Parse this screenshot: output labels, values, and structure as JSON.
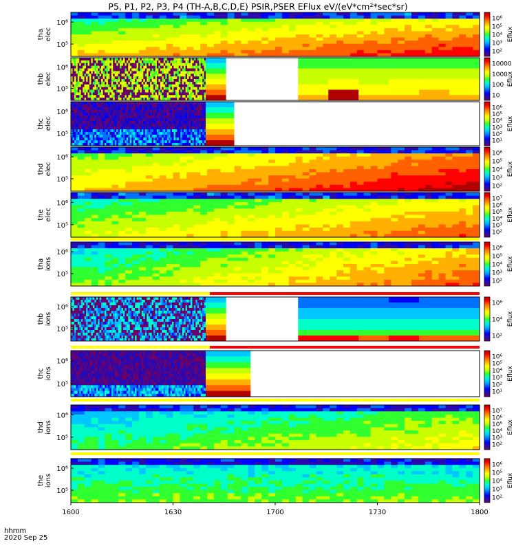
{
  "title": "P5, P1, P2, P3, P4 (TH-A,B,C,D,E) PSIR,PSER EFlux eV/(eV*cm²*sec*sr)",
  "x_axis": {
    "ticks": [
      "1600",
      "1630",
      "1700",
      "1730",
      "1800"
    ],
    "label_line1": "hhmm",
    "label_line2": "2020 Sep 25"
  },
  "colors": {
    "palette": [
      "#6a006a",
      "#2a0ab0",
      "#0000ff",
      "#0070ff",
      "#00c8ff",
      "#00ffc8",
      "#30ff30",
      "#c8ff00",
      "#ffff00",
      "#ffb000",
      "#ff6000",
      "#ff0000",
      "#b00000"
    ],
    "flag_yellow": "#ffff00",
    "flag_red": "#ff0000",
    "background": "#ffffff"
  },
  "chart_data": {
    "type": "heatmap",
    "x_range": [
      "1600",
      "1800"
    ],
    "y_scale": "log",
    "panels": [
      {
        "name": "tha_elec",
        "ylabel": [
          "tha",
          "elec"
        ],
        "yticks": [
          "10⁶",
          "10⁵"
        ],
        "cbar_ticks": [
          "10⁶",
          "10⁵",
          "10⁴",
          "10³",
          "10²"
        ],
        "cbar_label": "Eflux"
      },
      {
        "name": "thb_elec",
        "ylabel": [
          "thb",
          "elec"
        ],
        "yticks": [
          "10⁶",
          "10⁵"
        ],
        "cbar_ticks": [
          "10000",
          "1000",
          "100",
          "10"
        ],
        "cbar_label": "Eflux"
      },
      {
        "name": "thc_elec",
        "ylabel": [
          "thc",
          "elec"
        ],
        "yticks": [
          "10⁶",
          "10⁵"
        ],
        "cbar_ticks": [
          "10⁶",
          "10⁵",
          "10⁴",
          "10³",
          "10²",
          "10¹"
        ],
        "cbar_label": "Eflux"
      },
      {
        "name": "thd_elec",
        "ylabel": [
          "thd",
          "elec"
        ],
        "yticks": [
          "10⁶",
          "10⁵"
        ],
        "cbar_ticks": [
          "10⁶",
          "10⁵",
          "10⁴",
          "10³",
          "10²"
        ],
        "cbar_label": "Eflux"
      },
      {
        "name": "the_elec",
        "ylabel": [
          "the",
          "elec"
        ],
        "yticks": [
          "10⁶",
          "10⁵"
        ],
        "cbar_ticks": [
          "10⁷",
          "10⁶",
          "10⁵",
          "10⁴",
          "10³",
          "10²"
        ],
        "cbar_label": "Eflux"
      },
      {
        "name": "tha_ions",
        "ylabel": [
          "tha",
          "ions"
        ],
        "yticks": [
          "10⁶",
          "10⁵"
        ],
        "cbar_ticks": [
          "10⁶",
          "10⁵",
          "10⁴",
          "10³",
          "10²"
        ],
        "cbar_label": "Eflux"
      },
      {
        "name": "thb_ions",
        "ylabel": [
          "thb",
          "ions"
        ],
        "yticks": [
          "10⁶",
          "10⁵"
        ],
        "cbar_ticks": [
          "10⁶",
          "10⁴",
          "10²"
        ],
        "cbar_label": "Eflux"
      },
      {
        "name": "thc_ions",
        "ylabel": [
          "thc",
          "ions"
        ],
        "yticks": [
          "10⁶",
          "10⁵"
        ],
        "cbar_ticks": [
          "10⁶",
          "10⁵",
          "10⁴",
          "10³",
          "10²",
          "10¹"
        ],
        "cbar_label": "Eflux"
      },
      {
        "name": "thd_ions",
        "ylabel": [
          "thd",
          "ions"
        ],
        "yticks": [
          "10⁶",
          "10⁵"
        ],
        "cbar_ticks": [
          "10⁷",
          "10⁶",
          "10⁵",
          "10⁴",
          "10³",
          "10²"
        ],
        "cbar_label": "Eflux"
      },
      {
        "name": "the_ions",
        "ylabel": [
          "the",
          "ions"
        ],
        "yticks": [
          "10⁶",
          "10⁵"
        ],
        "cbar_ticks": [
          "10⁶",
          "10⁵",
          "10⁴",
          "10³",
          "10²"
        ],
        "cbar_label": "Eflux"
      }
    ]
  }
}
